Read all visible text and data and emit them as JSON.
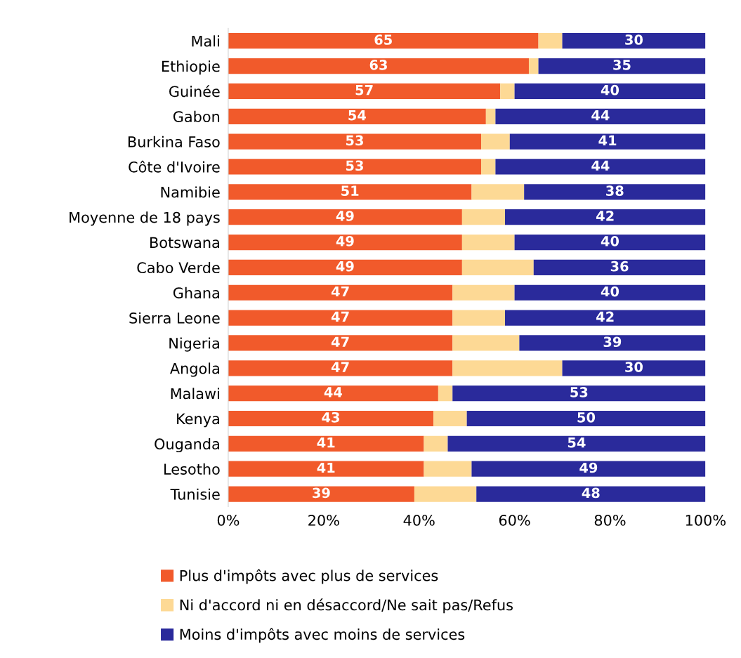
{
  "chart_data": {
    "type": "bar",
    "orientation": "horizontal",
    "stacked": true,
    "categories": [
      "Mali",
      "Ethiopie",
      "Guinée",
      "Gabon",
      "Burkina Faso",
      "Côte d'Ivoire",
      "Namibie",
      "Moyenne de 18 pays",
      "Botswana",
      "Cabo Verde",
      "Ghana",
      "Sierra Leone",
      "Nigeria",
      "Angola",
      "Malawi",
      "Kenya",
      "Ouganda",
      "Lesotho",
      "Tunisie"
    ],
    "series": [
      {
        "name": "Plus d'impôts avec plus de services",
        "color": "#f15a2b",
        "values": [
          65,
          63,
          57,
          54,
          53,
          53,
          51,
          49,
          49,
          49,
          47,
          47,
          47,
          47,
          44,
          43,
          41,
          41,
          39
        ],
        "value_labels": [
          "65",
          "63",
          "57",
          "54",
          "53",
          "53",
          "51",
          "49",
          "49",
          "49",
          "47",
          "47",
          "47",
          "47",
          "44",
          "43",
          "41",
          "41",
          "39"
        ]
      },
      {
        "name": "Ni d'accord ni en désaccord/Ne sait pas/Refus",
        "color": "#fdd995",
        "values": [
          5,
          2,
          3,
          2,
          6,
          3,
          11,
          9,
          11,
          15,
          13,
          11,
          14,
          23,
          3,
          7,
          5,
          10,
          13
        ]
      },
      {
        "name": "Moins d'impôts avec moins de services",
        "color": "#2a2a9b",
        "values": [
          30,
          35,
          40,
          44,
          41,
          44,
          38,
          42,
          40,
          36,
          40,
          42,
          39,
          30,
          53,
          50,
          54,
          49,
          48
        ],
        "value_labels": [
          "30",
          "35",
          "40",
          "44",
          "41",
          "44",
          "38",
          "42",
          "40",
          "36",
          "40",
          "42",
          "39",
          "30",
          "53",
          "50",
          "54",
          "49",
          "48"
        ]
      }
    ],
    "xlim": [
      0,
      100
    ],
    "xticks": [
      {
        "value": 0,
        "label": "0%"
      },
      {
        "value": 20,
        "label": "20%"
      },
      {
        "value": 40,
        "label": "40%"
      },
      {
        "value": 60,
        "label": "60%"
      },
      {
        "value": 80,
        "label": "80%"
      },
      {
        "value": 100,
        "label": "100%"
      }
    ],
    "grid": false,
    "legend": "bottom"
  }
}
